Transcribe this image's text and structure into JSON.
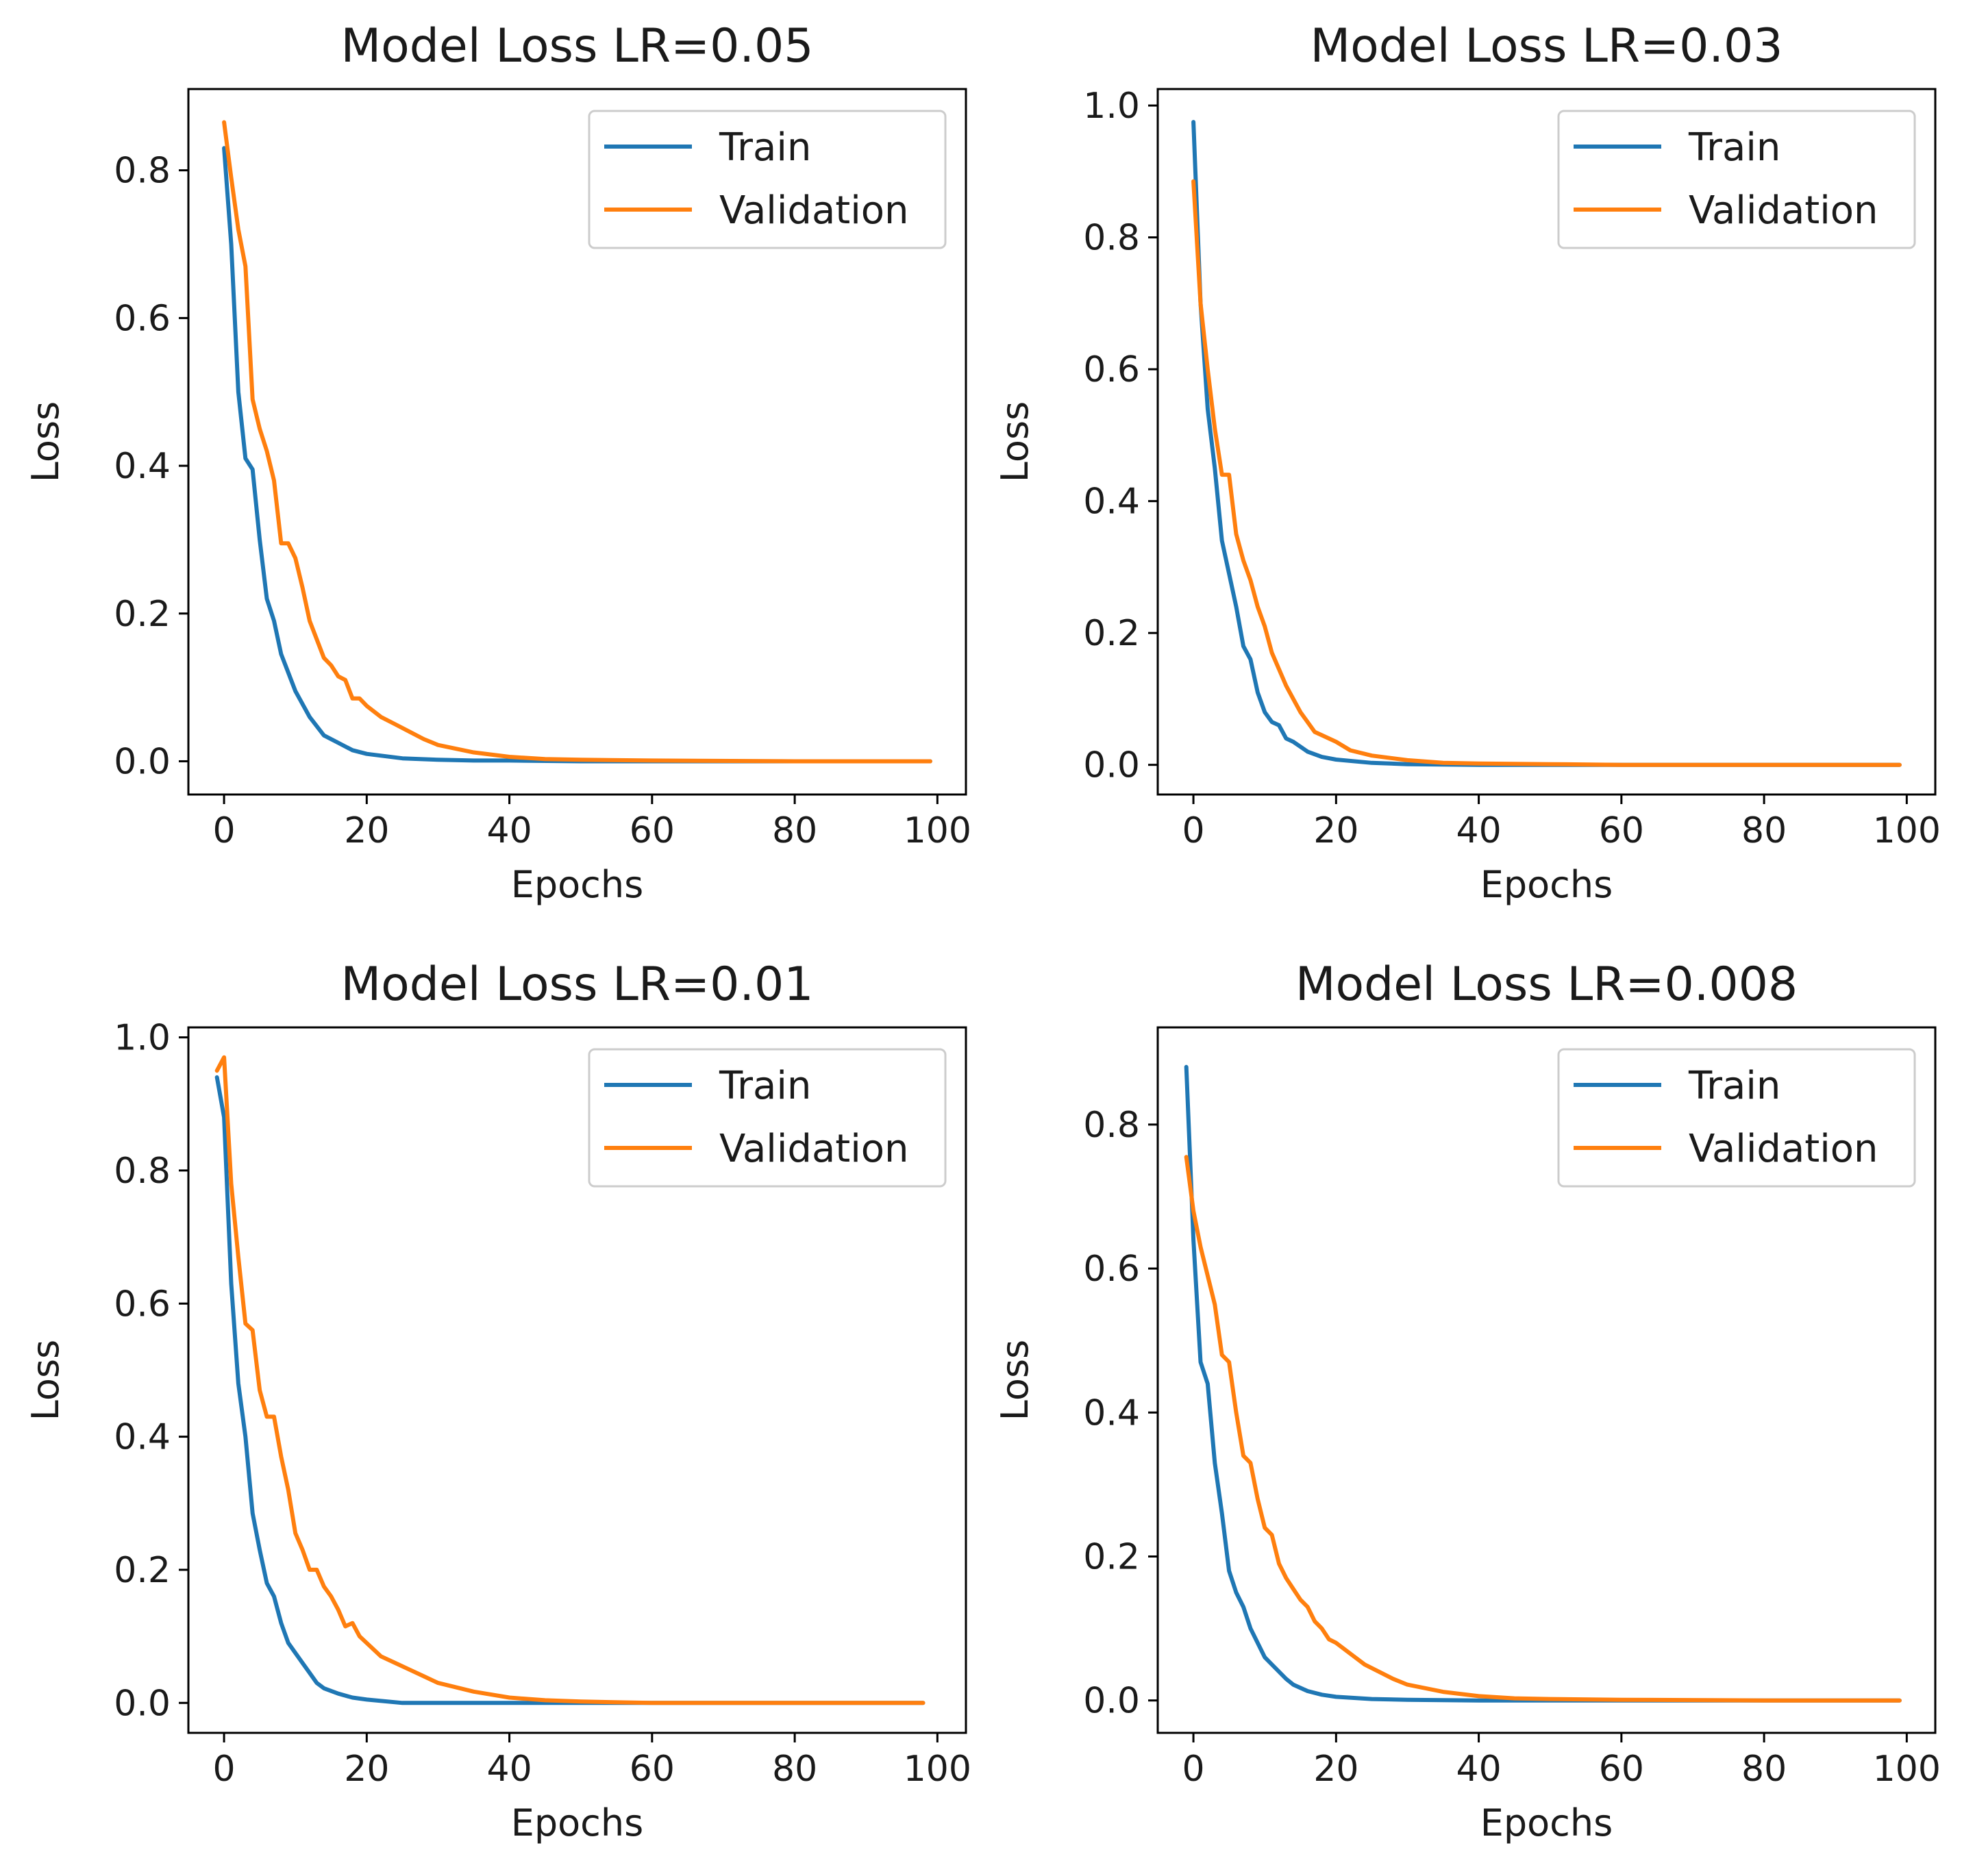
{
  "chart_data": [
    {
      "type": "line",
      "title": "Model Loss LR=0.05",
      "xlabel": "Epochs",
      "ylabel": "Loss",
      "xlim": [
        -5,
        104
      ],
      "ylim": [
        -0.045,
        0.91
      ],
      "xticks": [
        0,
        20,
        40,
        60,
        80,
        100
      ],
      "yticks": [
        0.0,
        0.2,
        0.4,
        0.6,
        0.8
      ],
      "ytick_labels": [
        "0.0",
        "0.2",
        "0.4",
        "0.6",
        "0.8"
      ],
      "grid": false,
      "legend": "top-right",
      "series": [
        {
          "name": "Train",
          "color": "#1f77b4",
          "x": [
            0,
            1,
            2,
            3,
            4,
            5,
            6,
            7,
            8,
            9,
            10,
            12,
            14,
            16,
            18,
            20,
            25,
            30,
            35,
            40,
            50,
            60,
            80,
            99
          ],
          "y": [
            0.83,
            0.7,
            0.5,
            0.41,
            0.395,
            0.3,
            0.22,
            0.19,
            0.145,
            0.12,
            0.095,
            0.06,
            0.035,
            0.025,
            0.015,
            0.01,
            0.004,
            0.002,
            0.001,
            0.001,
            0.0,
            0.0,
            0.0,
            0.0
          ]
        },
        {
          "name": "Validation",
          "color": "#ff7f0e",
          "x": [
            0,
            1,
            2,
            3,
            4,
            5,
            6,
            7,
            8,
            9,
            10,
            11,
            12,
            13,
            14,
            15,
            16,
            17,
            18,
            19,
            20,
            22,
            24,
            26,
            28,
            30,
            35,
            40,
            45,
            50,
            60,
            80,
            99
          ],
          "y": [
            0.865,
            0.79,
            0.72,
            0.67,
            0.49,
            0.45,
            0.42,
            0.38,
            0.295,
            0.295,
            0.275,
            0.235,
            0.19,
            0.165,
            0.14,
            0.13,
            0.115,
            0.11,
            0.085,
            0.085,
            0.075,
            0.06,
            0.05,
            0.04,
            0.03,
            0.022,
            0.012,
            0.006,
            0.003,
            0.002,
            0.001,
            0.0,
            0.0
          ]
        }
      ]
    },
    {
      "type": "line",
      "title": "Model Loss LR=0.03",
      "xlabel": "Epochs",
      "ylabel": "Loss",
      "xlim": [
        -5,
        104
      ],
      "ylim": [
        -0.045,
        1.025
      ],
      "xticks": [
        0,
        20,
        40,
        60,
        80,
        100
      ],
      "yticks": [
        0.0,
        0.2,
        0.4,
        0.6,
        0.8,
        1.0
      ],
      "ytick_labels": [
        "0.0",
        "0.2",
        "0.4",
        "0.6",
        "0.8",
        "1.0"
      ],
      "grid": false,
      "legend": "top-right",
      "series": [
        {
          "name": "Train",
          "color": "#1f77b4",
          "x": [
            0,
            1,
            2,
            3,
            4,
            5,
            6,
            7,
            8,
            9,
            10,
            11,
            12,
            13,
            14,
            16,
            18,
            20,
            25,
            30,
            40,
            50,
            60,
            80,
            99
          ],
          "y": [
            0.975,
            0.7,
            0.54,
            0.45,
            0.34,
            0.29,
            0.24,
            0.18,
            0.16,
            0.11,
            0.08,
            0.065,
            0.06,
            0.04,
            0.035,
            0.02,
            0.012,
            0.008,
            0.003,
            0.001,
            0.0,
            0.0,
            0.0,
            0.0,
            0.0
          ]
        },
        {
          "name": "Validation",
          "color": "#ff7f0e",
          "x": [
            0,
            1,
            2,
            3,
            4,
            5,
            6,
            7,
            8,
            9,
            10,
            11,
            12,
            13,
            14,
            15,
            16,
            17,
            18,
            20,
            22,
            25,
            30,
            35,
            40,
            50,
            60,
            80,
            99
          ],
          "y": [
            0.885,
            0.7,
            0.6,
            0.51,
            0.44,
            0.44,
            0.35,
            0.31,
            0.28,
            0.24,
            0.21,
            0.17,
            0.145,
            0.12,
            0.1,
            0.08,
            0.065,
            0.05,
            0.045,
            0.035,
            0.022,
            0.014,
            0.007,
            0.003,
            0.002,
            0.001,
            0.0,
            0.0,
            0.0
          ]
        }
      ]
    },
    {
      "type": "line",
      "title": "Model Loss LR=0.01",
      "xlabel": "Epochs",
      "ylabel": "Loss",
      "xlim": [
        -5,
        104
      ],
      "ylim": [
        -0.045,
        1.015
      ],
      "xticks": [
        0,
        20,
        40,
        60,
        80,
        100
      ],
      "yticks": [
        0.0,
        0.2,
        0.4,
        0.6,
        0.8,
        1.0
      ],
      "ytick_labels": [
        "0.0",
        "0.2",
        "0.4",
        "0.6",
        "0.8",
        "1.0"
      ],
      "grid": false,
      "legend": "top-right",
      "series": [
        {
          "name": "Train",
          "color": "#1f77b4",
          "x": [
            -1,
            0,
            1,
            2,
            3,
            4,
            5,
            6,
            7,
            8,
            9,
            10,
            11,
            12,
            13,
            14,
            16,
            18,
            20,
            25,
            30,
            40,
            50,
            60,
            80,
            98
          ],
          "y": [
            0.94,
            0.88,
            0.63,
            0.48,
            0.4,
            0.285,
            0.23,
            0.18,
            0.16,
            0.12,
            0.09,
            0.075,
            0.06,
            0.045,
            0.03,
            0.022,
            0.014,
            0.008,
            0.005,
            0.0,
            0.0,
            0.0,
            0.0,
            0.0,
            0.0,
            0.0
          ]
        },
        {
          "name": "Validation",
          "color": "#ff7f0e",
          "x": [
            -1,
            0,
            1,
            2,
            3,
            4,
            5,
            6,
            7,
            8,
            9,
            10,
            11,
            12,
            13,
            14,
            15,
            16,
            17,
            18,
            19,
            20,
            22,
            24,
            26,
            28,
            30,
            35,
            40,
            45,
            50,
            60,
            80,
            98
          ],
          "y": [
            0.95,
            0.97,
            0.78,
            0.67,
            0.57,
            0.56,
            0.47,
            0.43,
            0.43,
            0.37,
            0.32,
            0.255,
            0.23,
            0.2,
            0.2,
            0.175,
            0.16,
            0.14,
            0.115,
            0.12,
            0.1,
            0.09,
            0.07,
            0.06,
            0.05,
            0.04,
            0.03,
            0.017,
            0.008,
            0.004,
            0.002,
            0.0,
            0.0,
            0.0
          ]
        }
      ]
    },
    {
      "type": "line",
      "title": "Model Loss LR=0.008",
      "xlabel": "Epochs",
      "ylabel": "Loss",
      "xlim": [
        -5,
        104
      ],
      "ylim": [
        -0.045,
        0.935
      ],
      "xticks": [
        0,
        20,
        40,
        60,
        80,
        100
      ],
      "yticks": [
        0.0,
        0.2,
        0.4,
        0.6,
        0.8
      ],
      "ytick_labels": [
        "0.0",
        "0.2",
        "0.4",
        "0.6",
        "0.8"
      ],
      "grid": false,
      "legend": "top-right",
      "series": [
        {
          "name": "Train",
          "color": "#1f77b4",
          "x": [
            -1,
            0,
            1,
            2,
            3,
            4,
            5,
            6,
            7,
            8,
            9,
            10,
            11,
            12,
            13,
            14,
            16,
            18,
            20,
            25,
            30,
            40,
            50,
            60,
            80,
            99
          ],
          "y": [
            0.88,
            0.64,
            0.47,
            0.44,
            0.33,
            0.26,
            0.18,
            0.15,
            0.13,
            0.1,
            0.08,
            0.06,
            0.05,
            0.04,
            0.03,
            0.022,
            0.013,
            0.008,
            0.005,
            0.002,
            0.001,
            0.0,
            0.0,
            0.0,
            0.0,
            0.0
          ]
        },
        {
          "name": "Validation",
          "color": "#ff7f0e",
          "x": [
            -1,
            0,
            1,
            2,
            3,
            4,
            5,
            6,
            7,
            8,
            9,
            10,
            11,
            12,
            13,
            14,
            15,
            16,
            17,
            18,
            19,
            20,
            22,
            24,
            26,
            28,
            30,
            35,
            40,
            45,
            50,
            60,
            80,
            99
          ],
          "y": [
            0.755,
            0.68,
            0.63,
            0.59,
            0.55,
            0.48,
            0.47,
            0.4,
            0.34,
            0.33,
            0.28,
            0.24,
            0.23,
            0.19,
            0.17,
            0.155,
            0.14,
            0.13,
            0.11,
            0.1,
            0.085,
            0.08,
            0.065,
            0.05,
            0.04,
            0.03,
            0.022,
            0.012,
            0.006,
            0.003,
            0.002,
            0.001,
            0.0,
            0.0
          ]
        }
      ]
    }
  ]
}
